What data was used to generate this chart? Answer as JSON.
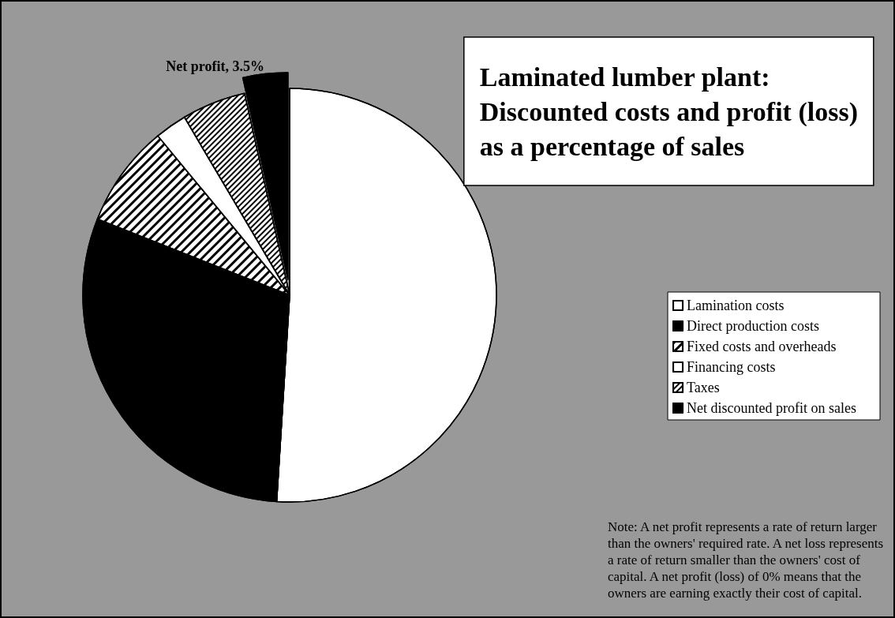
{
  "chart_data": {
    "type": "pie",
    "title": "Laminated lumber plant:\nDiscounted costs and profit (loss)\nas a percentage of sales",
    "categories": [
      "Lamination costs",
      "Direct production costs",
      "Fixed costs and overheads",
      "Financing costs",
      "Taxes",
      "Net discounted profit on sales"
    ],
    "values": [
      51,
      30,
      8,
      2.5,
      5,
      3.5
    ],
    "colors": [
      "#ffffff",
      "#000000",
      "#ffffff",
      "#ffffff",
      "#ffffff",
      "#000000"
    ],
    "value_labels": [
      null,
      null,
      null,
      null,
      null,
      "Net profit, 3.5%"
    ],
    "legend": "right",
    "annotations": [
      "Note: A net profit represents a rate of return larger than the owners' required rate. A net loss represents a rate of return smaller than the owners' cost of capital. A net profit (loss) of 0% means that the owners are earning exactly their cost of capital."
    ]
  }
}
